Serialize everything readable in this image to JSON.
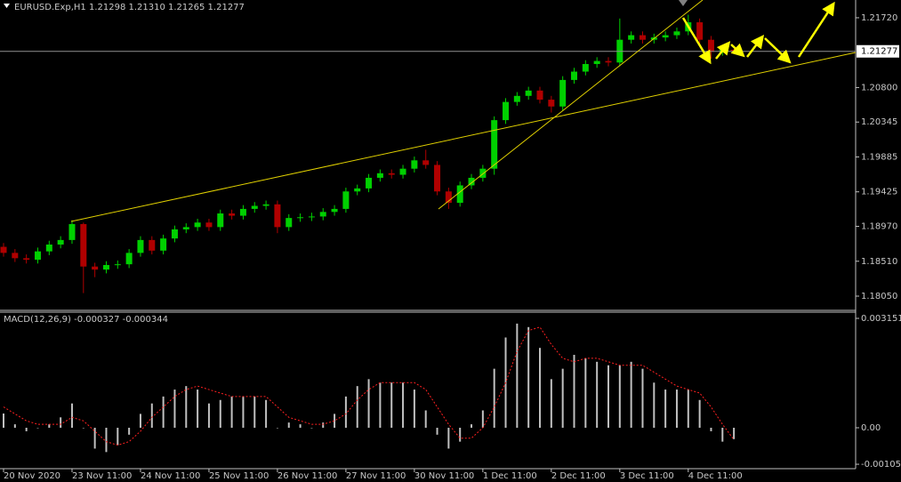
{
  "chart_data": [
    {
      "type": "candlestick",
      "title": "EURUSD.Exp,H1  1.21298 1.21310 1.21265 1.21277",
      "categories": [
        "20 Nov 2020",
        null,
        null,
        null,
        null,
        null,
        "23 Nov 11:00",
        null,
        null,
        null,
        null,
        null,
        "24 Nov 11:00",
        null,
        null,
        null,
        null,
        null,
        "25 Nov 11:00",
        null,
        null,
        null,
        null,
        null,
        "26 Nov 11:00",
        null,
        null,
        null,
        null,
        null,
        "27 Nov 11:00",
        null,
        null,
        null,
        null,
        null,
        "30 Nov 11:00",
        null,
        null,
        null,
        null,
        null,
        "1 Dec 11:00",
        null,
        null,
        null,
        null,
        null,
        "2 Dec 11:00",
        null,
        null,
        null,
        null,
        null,
        "3 Dec 11:00",
        null,
        null,
        null,
        null,
        null,
        "4 Dec 11:00",
        null,
        null,
        null,
        null
      ],
      "open": [
        1.187,
        1.1862,
        1.1855,
        1.1853,
        1.1864,
        1.1873,
        1.1879,
        1.19,
        1.1844,
        1.184,
        1.1846,
        1.1847,
        1.1862,
        1.1879,
        1.1865,
        1.1881,
        1.1893,
        1.1896,
        1.1902,
        1.1896,
        1.1914,
        1.1911,
        1.192,
        1.1924,
        1.1926,
        1.1896,
        1.1908,
        1.1909,
        1.191,
        1.1916,
        1.192,
        1.1943,
        1.1947,
        1.1961,
        1.1967,
        1.1965,
        1.1973,
        1.1984,
        1.1978,
        1.1943,
        1.1928,
        1.1951,
        1.1961,
        1.1973,
        1.2037,
        1.2061,
        1.2069,
        1.2076,
        1.2064,
        1.2055,
        1.209,
        1.2101,
        1.2111,
        1.2115,
        1.2113,
        1.2143,
        1.2149,
        1.2143,
        1.2146,
        1.2149,
        1.2154,
        1.2166,
        1.2143,
        1.2127,
        1.21298
      ],
      "high": [
        1.1875,
        1.1867,
        1.186,
        1.1869,
        1.1878,
        1.1884,
        1.1905,
        1.1902,
        1.1849,
        1.1851,
        1.1852,
        1.1867,
        1.1884,
        1.1884,
        1.1886,
        1.1898,
        1.1901,
        1.1907,
        1.1907,
        1.1919,
        1.1919,
        1.1925,
        1.1929,
        1.1931,
        1.1931,
        1.1913,
        1.1914,
        1.1915,
        1.1921,
        1.1925,
        1.1948,
        1.1952,
        1.1966,
        1.1972,
        1.1972,
        1.1978,
        1.1989,
        1.1998,
        1.1983,
        1.1948,
        1.1956,
        1.1966,
        1.1978,
        1.2042,
        1.2066,
        1.2074,
        1.2081,
        1.2081,
        1.2069,
        1.2095,
        1.2106,
        1.2116,
        1.212,
        1.212,
        1.2171,
        1.2154,
        1.2154,
        1.2151,
        1.2154,
        1.2159,
        1.2176,
        1.2171,
        1.2148,
        1.2136,
        1.2131
      ],
      "low": [
        1.1857,
        1.185,
        1.1848,
        1.1848,
        1.1859,
        1.1868,
        1.1874,
        1.1809,
        1.183,
        1.1835,
        1.1841,
        1.1842,
        1.1857,
        1.186,
        1.186,
        1.1876,
        1.1888,
        1.1891,
        1.1891,
        1.1891,
        1.1906,
        1.1906,
        1.1915,
        1.1919,
        1.1888,
        1.1891,
        1.1903,
        1.1904,
        1.1905,
        1.1911,
        1.1915,
        1.1938,
        1.1942,
        1.1956,
        1.196,
        1.196,
        1.1968,
        1.1973,
        1.1938,
        1.192,
        1.1923,
        1.1946,
        1.1956,
        1.1965,
        1.2032,
        1.2056,
        1.2064,
        1.2059,
        1.2047,
        1.205,
        1.2085,
        1.2096,
        1.2106,
        1.2108,
        1.2108,
        1.2138,
        1.2138,
        1.2138,
        1.2141,
        1.2144,
        1.2149,
        1.2138,
        1.2118,
        1.2122,
        1.21265
      ],
      "close": [
        1.1862,
        1.1855,
        1.1853,
        1.1864,
        1.1873,
        1.1879,
        1.19,
        1.1844,
        1.184,
        1.1846,
        1.1847,
        1.1862,
        1.1879,
        1.1865,
        1.1881,
        1.1893,
        1.1896,
        1.1902,
        1.1896,
        1.1914,
        1.1911,
        1.192,
        1.1924,
        1.1926,
        1.1896,
        1.1908,
        1.1909,
        1.191,
        1.1916,
        1.192,
        1.1943,
        1.1947,
        1.1961,
        1.1967,
        1.1965,
        1.1973,
        1.1984,
        1.1978,
        1.1943,
        1.1928,
        1.1951,
        1.1961,
        1.1973,
        1.2037,
        1.2061,
        1.2069,
        1.2076,
        1.2064,
        1.2055,
        1.209,
        1.2101,
        1.2111,
        1.2115,
        1.2113,
        1.2143,
        1.2149,
        1.2143,
        1.2146,
        1.2149,
        1.2154,
        1.2166,
        1.2143,
        1.2127,
        1.21298,
        1.21277
      ],
      "bull_color": "#00d000",
      "bear_color": "#b00000",
      "current_price": 1.21277,
      "ylim": [
        1.17874,
        1.21954
      ],
      "yticks": [
        {
          "value": 1.2172,
          "label": "1.21720"
        },
        {
          "value": 1.208,
          "label": "1.20800"
        },
        1.20345,
        1.19885,
        1.19425,
        {
          "value": 1.1897,
          "label": "1.18970"
        },
        {
          "value": 1.1851,
          "label": "1.18510"
        },
        {
          "value": 1.1805,
          "label": "1.18050"
        }
      ]
    },
    {
      "type": "macd",
      "title": "MACD(12,26,9) -0.000327 -0.000344",
      "histogram": [
        0.00041,
        0.0001,
        -0.0001,
        0,
        0.0001,
        0.0003,
        0.0007,
        0,
        -0.0006,
        -0.0007,
        -0.0005,
        -0.0002,
        0.0004,
        0.0007,
        0.0009,
        0.0011,
        0.0012,
        0.0011,
        0.0007,
        0.0008,
        0.0009,
        0.0009,
        0.0009,
        0.0008,
        0,
        0.00015,
        0.0001,
        0,
        0.00015,
        0.0004,
        0.0009,
        0.0012,
        0.0014,
        0.0013,
        0.0013,
        0.0013,
        0.0011,
        0.0005,
        -0.0002,
        -0.0006,
        -0.0004,
        0.0001,
        0.0005,
        0.0017,
        0.0026,
        0.003,
        0.0029,
        0.0023,
        0.0014,
        0.0017,
        0.0021,
        0.002,
        0.0019,
        0.0018,
        0.0018,
        0.0019,
        0.0017,
        0.0013,
        0.0011,
        0.0011,
        0.0011,
        0.0008,
        -0.0001,
        -0.0004,
        -0.000327
      ],
      "signal": [
        0.0006,
        0.0004,
        0.0002,
        0.0001,
        0.0001,
        0.0001,
        0.0003,
        0.0002,
        -0.0001,
        -0.0004,
        -0.0005,
        -0.0004,
        -0.0001,
        0.0003,
        0.0006,
        0.0009,
        0.0011,
        0.0012,
        0.0011,
        0.001,
        0.0009,
        0.0009,
        0.0009,
        0.0009,
        0.0006,
        0.0003,
        0.0002,
        0.0001,
        0.0001,
        0.0002,
        0.0004,
        0.0008,
        0.0011,
        0.0013,
        0.0013,
        0.0013,
        0.0013,
        0.0011,
        0.0006,
        0.0001,
        -0.0003,
        -0.0003,
        0,
        0.0006,
        0.0013,
        0.0022,
        0.0028,
        0.0029,
        0.0024,
        0.002,
        0.0019,
        0.002,
        0.002,
        0.0019,
        0.0018,
        0.0018,
        0.0018,
        0.0016,
        0.0014,
        0.0012,
        0.0011,
        0.001,
        0.0006,
        0.0001,
        -0.000344
      ],
      "histogram_color": "#c0c0c0",
      "signal_color": "#ff2020",
      "ylim": [
        -0.001178,
        0.00333
      ],
      "yticks": [
        0.003151,
        {
          "value": 0,
          "label": "0.00"
        },
        -0.001051
      ]
    }
  ]
}
